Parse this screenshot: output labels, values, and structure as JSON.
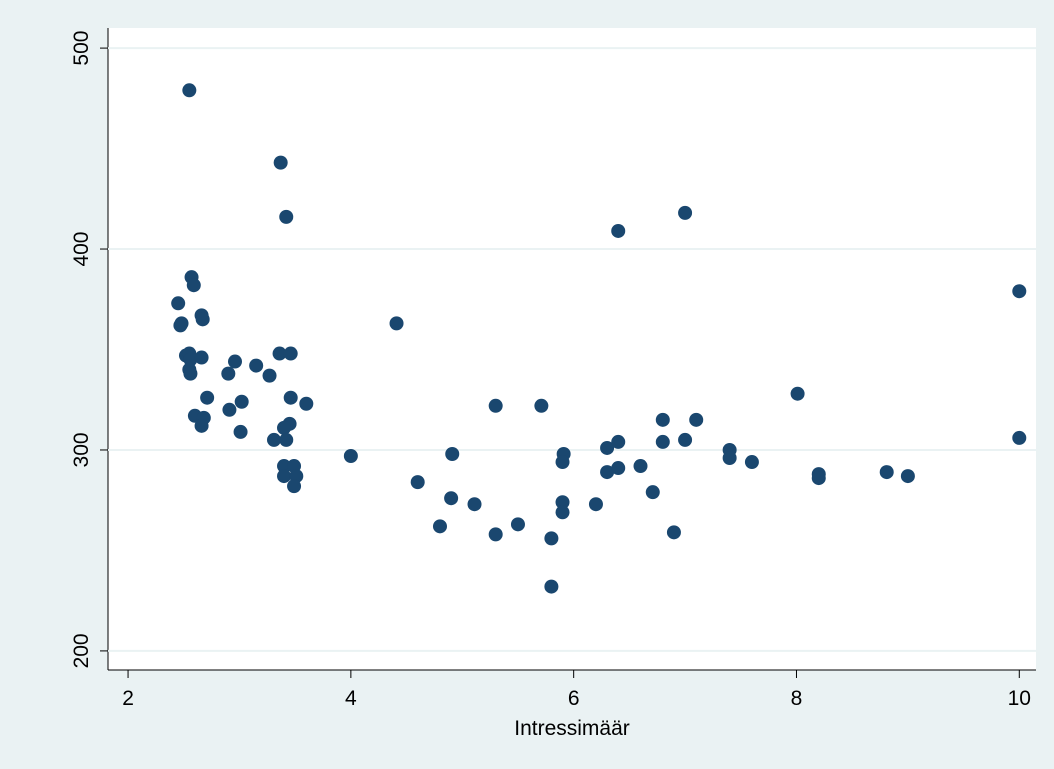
{
  "chart_data": {
    "type": "scatter",
    "x_label": "Intressimäär",
    "color": "#1a476f",
    "grid": true,
    "xlim": [
      1.82,
      10.15
    ],
    "ylim": [
      190.5,
      510
    ],
    "xticks": [
      2,
      4,
      6,
      8,
      10
    ],
    "yticks": [
      200,
      300,
      400,
      500
    ],
    "x": [
      2.55,
      3.37,
      3.42,
      2.57,
      2.59,
      2.45,
      2.47,
      2.48,
      2.66,
      2.67,
      4.41,
      2.52,
      2.55,
      2.56,
      2.66,
      2.96,
      3.15,
      2.9,
      3.02,
      3.27,
      2.55,
      2.56,
      3.36,
      3.46,
      3.46,
      3.6,
      2.71,
      2.91,
      2.6,
      2.68,
      2.66,
      3.45,
      3.4,
      3.31,
      3.42,
      3.01,
      3.4,
      3.49,
      3.4,
      3.51,
      3.49,
      4.0,
      4.6,
      4.91,
      4.9,
      4.8,
      5.11,
      5.3,
      5.3,
      5.5,
      5.71,
      5.8,
      5.8,
      5.91,
      5.9,
      5.9,
      5.9,
      6.2,
      6.3,
      6.3,
      6.4,
      6.4,
      6.4,
      6.6,
      6.71,
      6.8,
      6.8,
      6.9,
      7.0,
      7.0,
      7.1,
      7.4,
      7.4,
      7.6,
      8.01,
      8.2,
      8.2,
      8.81,
      9.0,
      10.0,
      10.0
    ],
    "values": [
      479,
      443,
      416,
      386,
      382,
      373,
      362,
      363,
      367,
      365,
      363,
      347,
      348,
      345,
      346,
      344,
      342,
      338,
      324,
      337,
      340,
      338,
      348,
      348,
      326,
      323,
      326,
      320,
      317,
      316,
      312,
      313,
      311,
      305,
      305,
      309,
      292,
      292,
      287,
      287,
      282,
      297,
      284,
      298,
      276,
      262,
      273,
      322,
      258,
      263,
      322,
      256,
      232,
      298,
      294,
      274,
      269,
      273,
      301,
      289,
      304,
      291,
      409,
      292,
      279,
      315,
      304,
      259,
      418,
      305,
      315,
      300,
      296,
      294,
      328,
      288,
      286,
      289,
      287,
      379,
      306
    ]
  }
}
